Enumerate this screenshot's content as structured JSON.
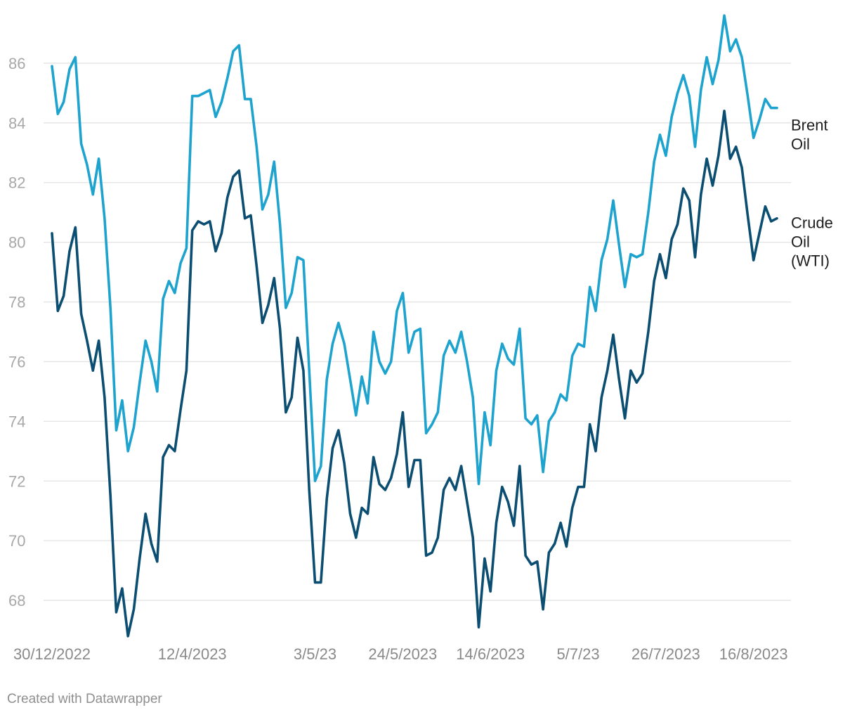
{
  "footer": "Created with Datawrapper",
  "chart_data": {
    "type": "line",
    "title": "",
    "xlabel": "",
    "ylabel": "",
    "ylim": [
      66.8,
      87.6
    ],
    "grid": true,
    "y_ticks": [
      68,
      70,
      72,
      74,
      76,
      78,
      80,
      82,
      84,
      86
    ],
    "x_ticks": [
      {
        "label": "30/12/2022",
        "index": 0
      },
      {
        "label": "12/4/2023",
        "index": 24
      },
      {
        "label": "3/5/23",
        "index": 45
      },
      {
        "label": "24/5/2023",
        "index": 60
      },
      {
        "label": "14/6/2023",
        "index": 75
      },
      {
        "label": "5/7/23",
        "index": 90
      },
      {
        "label": "26/7/2023",
        "index": 105
      },
      {
        "label": "16/8/2023",
        "index": 120
      }
    ],
    "series": [
      {
        "name": "Brent Oil",
        "label_lines": [
          "Brent",
          "Oil"
        ],
        "color": "#1ea3cf",
        "values": [
          85.9,
          84.3,
          84.7,
          85.8,
          86.2,
          83.3,
          82.6,
          81.6,
          82.8,
          80.8,
          77.8,
          73.7,
          74.7,
          73.0,
          73.8,
          75.3,
          76.7,
          76.0,
          75.0,
          78.1,
          78.7,
          78.3,
          79.3,
          79.8,
          84.9,
          84.9,
          85.0,
          85.1,
          84.2,
          84.7,
          85.5,
          86.4,
          86.6,
          84.8,
          84.8,
          83.2,
          81.1,
          81.6,
          82.7,
          80.6,
          77.8,
          78.3,
          79.5,
          79.4,
          75.7,
          72.0,
          72.5,
          75.4,
          76.6,
          77.3,
          76.6,
          75.4,
          74.2,
          75.5,
          74.6,
          77.0,
          76.0,
          75.6,
          76.0,
          77.7,
          78.3,
          76.3,
          77.0,
          77.1,
          73.6,
          73.9,
          74.3,
          76.2,
          76.7,
          76.3,
          77.0,
          76.0,
          74.8,
          71.9,
          74.3,
          73.2,
          75.7,
          76.6,
          76.1,
          75.9,
          77.1,
          74.1,
          73.9,
          74.2,
          72.3,
          74.0,
          74.3,
          74.9,
          74.7,
          76.2,
          76.6,
          76.5,
          78.5,
          77.7,
          79.4,
          80.1,
          81.4,
          79.9,
          78.5,
          79.6,
          79.5,
          79.6,
          81.0,
          82.7,
          83.6,
          82.9,
          84.2,
          85.0,
          85.6,
          84.9,
          83.2,
          85.1,
          86.2,
          85.3,
          86.1,
          87.6,
          86.4,
          86.8,
          86.2,
          84.9,
          83.5,
          84.1,
          84.8,
          84.5,
          84.5
        ],
        "label_y": 83.6
      },
      {
        "name": "Crude Oil (WTI)",
        "label_lines": [
          "Crude",
          "Oil",
          "(WTI)"
        ],
        "color": "#0b4e72",
        "values": [
          80.3,
          77.7,
          78.2,
          79.7,
          80.5,
          77.6,
          76.7,
          75.7,
          76.7,
          74.8,
          71.5,
          67.6,
          68.4,
          66.8,
          67.7,
          69.4,
          70.9,
          69.9,
          69.3,
          72.8,
          73.2,
          73.0,
          74.4,
          75.7,
          80.4,
          80.7,
          80.6,
          80.7,
          79.7,
          80.3,
          81.5,
          82.2,
          82.4,
          80.8,
          80.9,
          79.2,
          77.3,
          77.9,
          78.8,
          77.1,
          74.3,
          74.8,
          76.8,
          75.7,
          71.7,
          68.6,
          68.6,
          71.4,
          73.1,
          73.7,
          72.6,
          70.9,
          70.1,
          71.1,
          70.9,
          72.8,
          71.9,
          71.7,
          72.1,
          72.9,
          74.3,
          71.8,
          72.7,
          72.7,
          69.5,
          69.6,
          70.1,
          71.7,
          72.1,
          71.7,
          72.5,
          71.3,
          70.1,
          67.1,
          69.4,
          68.3,
          70.6,
          71.8,
          71.3,
          70.5,
          72.5,
          69.5,
          69.2,
          69.3,
          67.7,
          69.6,
          69.9,
          70.6,
          69.8,
          71.1,
          71.8,
          71.8,
          73.9,
          73.0,
          74.8,
          75.7,
          76.9,
          75.4,
          74.1,
          75.7,
          75.3,
          75.6,
          77.0,
          78.7,
          79.6,
          78.8,
          80.1,
          80.6,
          81.8,
          81.4,
          79.5,
          81.6,
          82.8,
          81.9,
          82.9,
          84.4,
          82.8,
          83.2,
          82.5,
          80.9,
          79.4,
          80.3,
          81.2,
          80.7,
          80.8
        ],
        "label_y": 80.0
      }
    ]
  }
}
